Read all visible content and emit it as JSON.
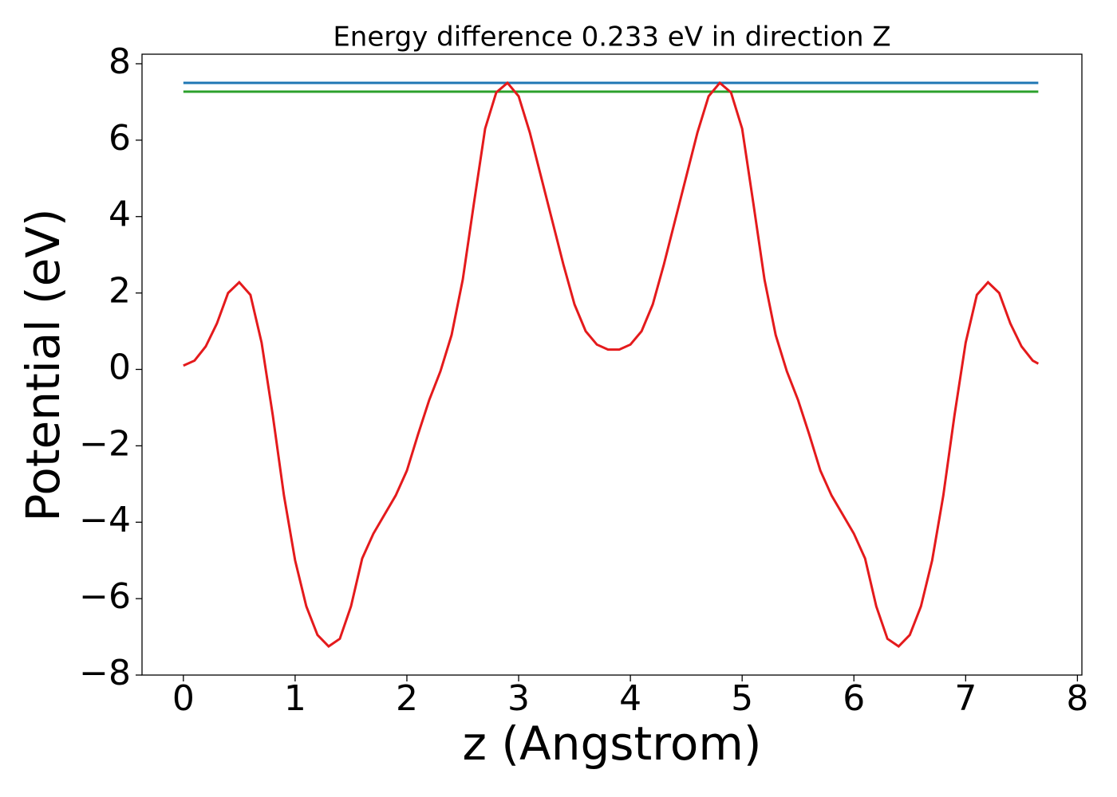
{
  "chart_data": {
    "type": "line",
    "title": "Energy difference 0.233 eV in direction Z",
    "xlabel": "z (Angstrom)",
    "ylabel": "Potential (eV)",
    "xlim": [
      -0.37,
      8.04
    ],
    "ylim": [
      -8,
      8.25
    ],
    "xticks": [
      0,
      1,
      2,
      3,
      4,
      5,
      6,
      7,
      8
    ],
    "yticks": [
      {
        "value": -8,
        "label": "−8"
      },
      {
        "value": -6,
        "label": "−6"
      },
      {
        "value": -4,
        "label": "−4"
      },
      {
        "value": -2,
        "label": "−2"
      },
      0,
      2,
      4,
      6,
      8
    ],
    "series": [
      {
        "color": "#1f77b4",
        "x": [
          0,
          7.65
        ],
        "values": [
          7.5,
          7.5
        ]
      },
      {
        "color": "#2ca02c",
        "x": [
          0,
          7.65
        ],
        "values": [
          7.27,
          7.27
        ]
      },
      {
        "color": "#e41a1c",
        "x": [
          0,
          0.1,
          0.2,
          0.3,
          0.4,
          0.5,
          0.6,
          0.7,
          0.8,
          0.9,
          1.0,
          1.1,
          1.2,
          1.3,
          1.4,
          1.5,
          1.6,
          1.7,
          1.8,
          1.9,
          2.0,
          2.1,
          2.2,
          2.3,
          2.4,
          2.5,
          2.6,
          2.7,
          2.8,
          2.9,
          3.0,
          3.1,
          3.2,
          3.3,
          3.4,
          3.5,
          3.6,
          3.7,
          3.8,
          3.9,
          4.0,
          4.1,
          4.2,
          4.3,
          4.4,
          4.5,
          4.6,
          4.7,
          4.8,
          4.9,
          5.0,
          5.1,
          5.2,
          5.3,
          5.4,
          5.5,
          5.6,
          5.7,
          5.8,
          5.9,
          6.0,
          6.1,
          6.2,
          6.3,
          6.4,
          6.5,
          6.6,
          6.7,
          6.8,
          6.9,
          7.0,
          7.1,
          7.2,
          7.3,
          7.4,
          7.5,
          7.6,
          7.65
        ],
        "values": [
          0.1,
          0.23,
          0.6,
          1.2,
          2.0,
          2.28,
          1.95,
          0.7,
          -1.2,
          -3.3,
          -5.0,
          -6.2,
          -6.95,
          -7.25,
          -7.05,
          -6.2,
          -4.95,
          -4.3,
          -3.8,
          -3.3,
          -2.65,
          -1.7,
          -0.8,
          -0.05,
          0.9,
          2.35,
          4.35,
          6.3,
          7.25,
          7.5,
          7.15,
          6.2,
          5.05,
          3.9,
          2.75,
          1.7,
          1.0,
          0.65,
          0.52,
          0.52,
          0.65,
          1.0,
          1.7,
          2.75,
          3.9,
          5.05,
          6.2,
          7.15,
          7.5,
          7.25,
          6.3,
          4.35,
          2.35,
          0.9,
          -0.05,
          -0.8,
          -1.7,
          -2.65,
          -3.3,
          -3.8,
          -4.3,
          -4.95,
          -6.2,
          -7.05,
          -7.25,
          -6.95,
          -6.2,
          -5.0,
          -3.3,
          -1.2,
          0.7,
          1.95,
          2.28,
          2.0,
          1.2,
          0.6,
          0.23,
          0.15
        ]
      }
    ]
  }
}
